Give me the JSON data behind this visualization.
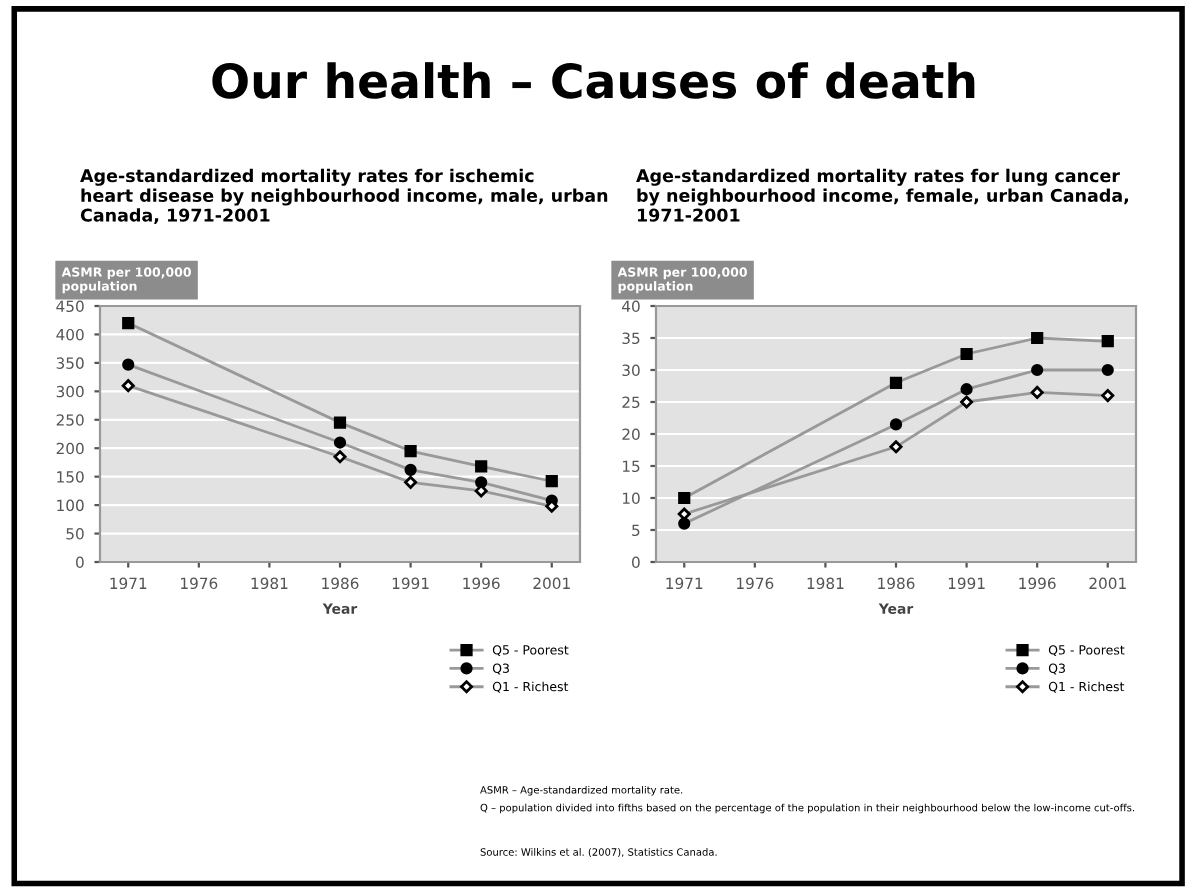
{
  "chart_data": [
    {
      "type": "line",
      "title": "Our health – Causes of death",
      "subtitle": "Age-standardized mortality rates for ischemic heart disease by neighbourhood income, male, urban Canada, 1971-2001",
      "xlabel": "Year",
      "ylabel": "ASMR per 100,000 population",
      "x": [
        1971,
        1986,
        1991,
        1996,
        2001
      ],
      "xlim": [
        1969,
        2003
      ],
      "xticks": [
        1971,
        1976,
        1981,
        1986,
        1991,
        1996,
        2001
      ],
      "ylim": [
        0,
        450
      ],
      "yticks": [
        0,
        50,
        100,
        150,
        200,
        250,
        300,
        350,
        400,
        450
      ],
      "grid": "y",
      "legend": "bottom right",
      "series": [
        {
          "name": "Q5 - Poorest",
          "color": "#999999",
          "marker": "square",
          "values": [
            420,
            245,
            195,
            168,
            142
          ]
        },
        {
          "name": "Q3",
          "color": "#999999",
          "marker": "circle",
          "values": [
            347,
            210,
            162,
            140,
            108
          ]
        },
        {
          "name": "Q1 - Richest",
          "color": "#999999",
          "marker": "diamond",
          "values": [
            310,
            185,
            140,
            125,
            98
          ]
        }
      ]
    },
    {
      "type": "line",
      "title": "Age-standardized mortality rates for lung cancer by neighbourhood income, female, urban Canada, 1971-2001",
      "xlabel": "Year",
      "ylabel": "ASMR per 100,000 population",
      "x": [
        1971,
        1986,
        1991,
        1996,
        2001
      ],
      "xlim": [
        1969,
        2003
      ],
      "xticks": [
        1971,
        1976,
        1981,
        1986,
        1991,
        1996,
        2001
      ],
      "ylim": [
        0,
        40
      ],
      "yticks": [
        0,
        5,
        10,
        15,
        20,
        25,
        30,
        35,
        40
      ],
      "grid": "y",
      "legend": "bottom right",
      "series": [
        {
          "name": "Q5 - Poorest",
          "color": "#999999",
          "marker": "square",
          "values": [
            10,
            28,
            32.5,
            35,
            34.5
          ]
        },
        {
          "name": "Q3",
          "color": "#999999",
          "marker": "circle",
          "values": [
            6,
            21.5,
            27,
            30,
            30
          ]
        },
        {
          "name": "Q1 - Richest",
          "color": "#999999",
          "marker": "diamond",
          "values": [
            7.5,
            18,
            25,
            26.5,
            26
          ]
        }
      ],
      "annotations": [
        "ASMR – Age-standardized mortality rate.",
        "Q – population divided into fifths based on the percentage of the population in their neighbourhood below the low-income cut-offs.",
        "Source: Wilkins et al. (2007), Statistics Canada."
      ]
    }
  ]
}
